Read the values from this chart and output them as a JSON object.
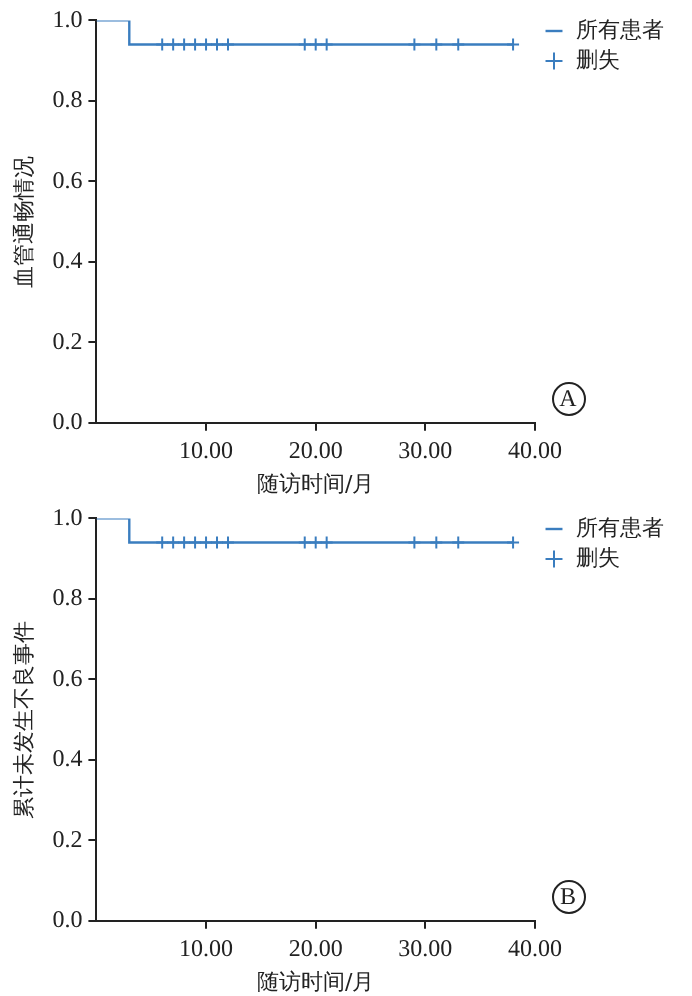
{
  "chart_data": [
    {
      "type": "step",
      "xlabel": "随访时间/月",
      "ylabel": "血管通畅情况",
      "xlim": [
        0,
        40
      ],
      "xticks": [
        {
          "value": 10,
          "label": "10.00"
        },
        {
          "value": 20,
          "label": "20.00"
        },
        {
          "value": 30,
          "label": "30.00"
        },
        {
          "value": 40,
          "label": "40.00"
        }
      ],
      "ylim": [
        0,
        1
      ],
      "yticks": [
        {
          "value": 0,
          "label": "0.0"
        },
        {
          "value": 0.2,
          "label": "0.2"
        },
        {
          "value": 0.4,
          "label": "0.4"
        },
        {
          "value": 0.6,
          "label": "0.6"
        },
        {
          "value": 0.8,
          "label": "0.8"
        },
        {
          "value": 1,
          "label": "1.0"
        }
      ],
      "legend": "top right",
      "grid": false,
      "annotations": [
        "A"
      ],
      "series": [
        {
          "name": "所有患者",
          "color": "#3a7dbf",
          "x": [
            0,
            3,
            38
          ],
          "values": [
            1,
            0.94,
            0.94
          ],
          "marker": "none"
        },
        {
          "name": "删失",
          "type": "scatter",
          "color": "#3a7dbf",
          "marker": "cross",
          "x": [
            6,
            7,
            8,
            9,
            10,
            11,
            12,
            19,
            20,
            21,
            29,
            31,
            33,
            38
          ],
          "values": [
            0.94,
            0.94,
            0.94,
            0.94,
            0.94,
            0.94,
            0.94,
            0.94,
            0.94,
            0.94,
            0.94,
            0.94,
            0.94,
            0.94
          ]
        }
      ]
    },
    {
      "type": "step",
      "xlabel": "随访时间/月",
      "ylabel": "累计未发生不良事件",
      "xlim": [
        0,
        40
      ],
      "xticks": [
        {
          "value": 10,
          "label": "10.00"
        },
        {
          "value": 20,
          "label": "20.00"
        },
        {
          "value": 30,
          "label": "30.00"
        },
        {
          "value": 40,
          "label": "40.00"
        }
      ],
      "ylim": [
        0,
        1
      ],
      "yticks": [
        {
          "value": 0,
          "label": "0.0"
        },
        {
          "value": 0.2,
          "label": "0.2"
        },
        {
          "value": 0.4,
          "label": "0.4"
        },
        {
          "value": 0.6,
          "label": "0.6"
        },
        {
          "value": 0.8,
          "label": "0.8"
        },
        {
          "value": 1,
          "label": "1.0"
        }
      ],
      "legend": "top right",
      "grid": false,
      "annotations": [
        "B"
      ],
      "series": [
        {
          "name": "所有患者",
          "color": "#3a7dbf",
          "x": [
            0,
            3,
            38
          ],
          "values": [
            1,
            0.94,
            0.94
          ],
          "marker": "none"
        },
        {
          "name": "删失",
          "type": "scatter",
          "color": "#3a7dbf",
          "marker": "cross",
          "x": [
            6,
            7,
            8,
            9,
            10,
            11,
            12,
            19,
            20,
            21,
            29,
            31,
            33,
            38
          ],
          "values": [
            0.94,
            0.94,
            0.94,
            0.94,
            0.94,
            0.94,
            0.94,
            0.94,
            0.94,
            0.94,
            0.94,
            0.94,
            0.94,
            0.94
          ]
        }
      ]
    }
  ]
}
